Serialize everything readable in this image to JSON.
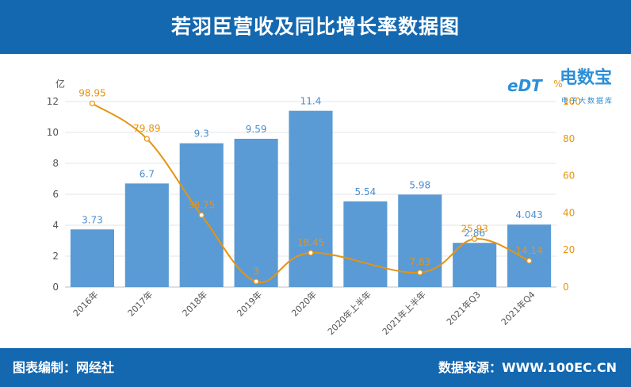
{
  "header": {
    "title": "若羽臣营收及同比增长率数据图"
  },
  "footer": {
    "left": "图表编制：网经社",
    "right": "数据来源：WWW.100EC.CN"
  },
  "logo": {
    "badge": "eDT",
    "main": "电数宝",
    "sub": "电子大数据库"
  },
  "colors": {
    "header_bg": "#1468b0",
    "bar": "#5b9bd5",
    "bar_label": "#4a8ed0",
    "line": "#e8930f",
    "line_label": "#e8930f",
    "axis_text": "#555555",
    "grid": "#e6e6e6"
  },
  "chart_data": {
    "type": "bar",
    "categories": [
      "2016年",
      "2017年",
      "2018年",
      "2019年",
      "2020年",
      "2020年上半年",
      "2021年上半年",
      "2021年Q3",
      "2021年Q4"
    ],
    "series": [
      {
        "values": [
          3.73,
          6.7,
          9.3,
          9.59,
          11.4,
          5.54,
          5.98,
          2.86,
          4.043
        ],
        "labels": [
          "3.73",
          "6.7",
          "9.3",
          "9.59",
          "11.4",
          "5.54",
          "5.98",
          "2.86",
          "4.043"
        ]
      },
      {
        "type": "line",
        "axis": "right",
        "values": [
          98.95,
          79.89,
          38.75,
          3,
          18.45,
          null,
          7.83,
          25.93,
          14.14
        ],
        "labels": [
          "98.95",
          "79.89",
          "38.75",
          "3",
          "18.45",
          "",
          "7.83",
          "25.93",
          "14.14"
        ]
      }
    ],
    "y_left": {
      "unit": "亿",
      "ylim": [
        0,
        12
      ],
      "ticks": [
        "0",
        "2",
        "4",
        "6",
        "8",
        "10",
        "12"
      ]
    },
    "y_right": {
      "unit": "%",
      "ylim": [
        0,
        100
      ],
      "ticks": [
        "0",
        "20",
        "40",
        "60",
        "80",
        "100"
      ]
    },
    "grid": true,
    "legend": "none"
  }
}
